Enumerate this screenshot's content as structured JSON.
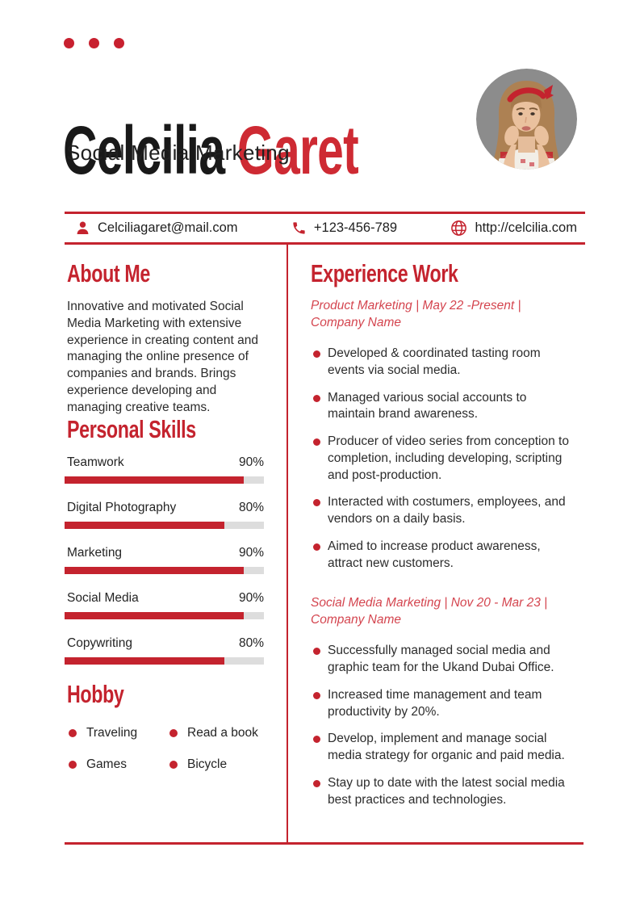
{
  "header": {
    "name_first": "Celcilia",
    "name_last": "Garet",
    "subtitle": "Social Media Marketing"
  },
  "contact": {
    "email": "Celciliagaret@mail.com",
    "phone": "+123-456-789",
    "website": "http://celcilia.com",
    "icons": {
      "email": "person-icon",
      "phone": "phone-icon",
      "website": "globe-icon"
    }
  },
  "about": {
    "heading": "About Me",
    "text": "Innovative and motivated Social Media Marketing with extensive experience in creating content and managing the online presence of companies and brands. Brings experience developing and managing creative teams."
  },
  "skills": {
    "heading": "Personal Skills",
    "items": [
      {
        "label": "Teamwork",
        "percent": "90%",
        "value": 90
      },
      {
        "label": "Digital Photography",
        "percent": "80%",
        "value": 80
      },
      {
        "label": "Marketing",
        "percent": "90%",
        "value": 90
      },
      {
        "label": "Social Media",
        "percent": "90%",
        "value": 90
      },
      {
        "label": "Copywriting",
        "percent": "80%",
        "value": 80
      }
    ]
  },
  "hobby": {
    "heading": "Hobby",
    "items": [
      "Traveling",
      "Read a book",
      "Games",
      "Bicycle"
    ]
  },
  "experience": {
    "heading": "Experience Work",
    "jobs": [
      {
        "title": "Product Marketing | May 22 -Present | Company Name",
        "bullets": [
          "Developed & coordinated tasting room events via social media.",
          "Managed various social accounts to maintain brand awareness.",
          "Producer of video series from conception to completion, including developing, scripting and post-production.",
          "Interacted with costumers, employees, and vendors on a daily basis.",
          "Aimed to increase product awareness, attract new customers."
        ]
      },
      {
        "title": "Social Media Marketing | Nov 20 - Mar 23 | Company Name",
        "bullets": [
          "Successfully managed social media and graphic team for the Ukand Dubai Office.",
          "Increased time management and team productivity by 20%.",
          "Develop, implement and manage social media strategy for organic and paid media.",
          "Stay up to date with the latest social media best practices and technologies."
        ]
      }
    ]
  },
  "colors": {
    "accent": "#C4232E",
    "accent_light": "#D4454F",
    "accent_name": "#CE2A33",
    "accent_dot": "#C8202F",
    "track": "#DDDDDD",
    "text": "#2C2C2C",
    "photo_bg": "#8C8C8C"
  }
}
